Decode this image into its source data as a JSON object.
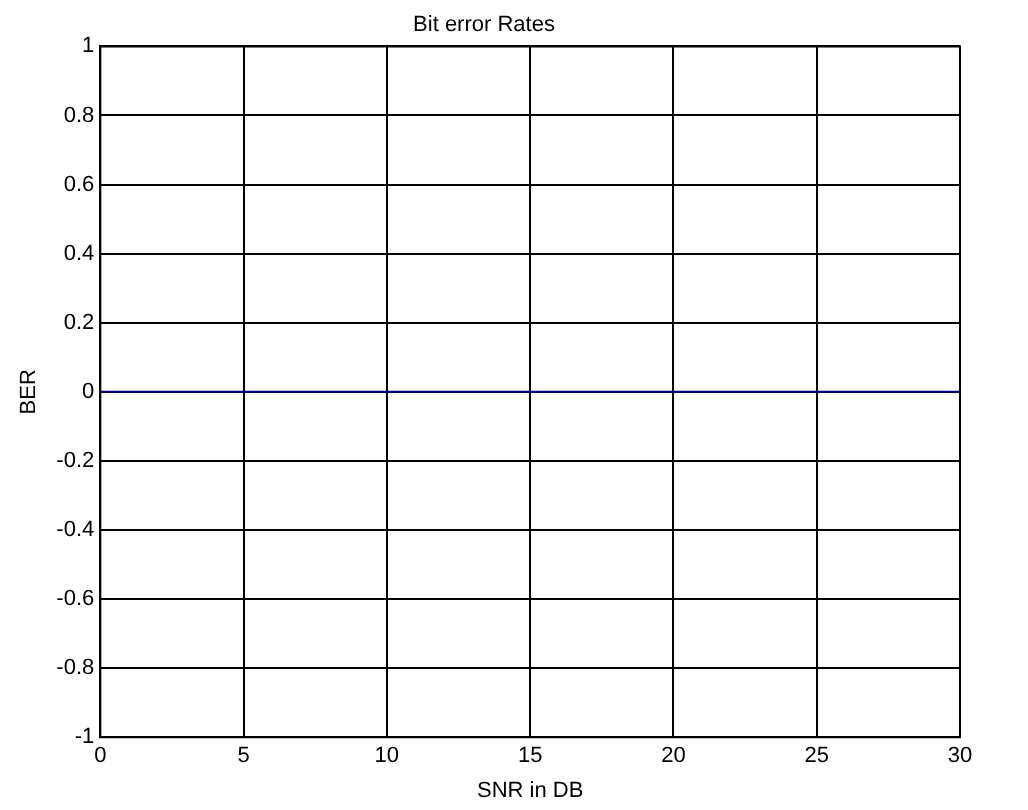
{
  "chart_data": {
    "type": "line",
    "title": "Bit error Rates",
    "xlabel": "SNR in DB",
    "ylabel": "BER",
    "x": [
      0,
      30
    ],
    "series": [
      {
        "color": "#00007f",
        "values": [
          0,
          0
        ]
      }
    ],
    "xlim": [
      0,
      30
    ],
    "xticks": [
      0,
      5,
      10,
      15,
      20,
      25,
      30
    ],
    "ylim": [
      -1,
      1
    ],
    "yticks": [
      -1,
      -0.8,
      -0.6,
      -0.4,
      -0.2,
      0,
      0.2,
      0.4,
      0.6,
      0.8,
      1
    ],
    "grid": true,
    "legend": false,
    "marker": "none",
    "line_style": "solid"
  }
}
